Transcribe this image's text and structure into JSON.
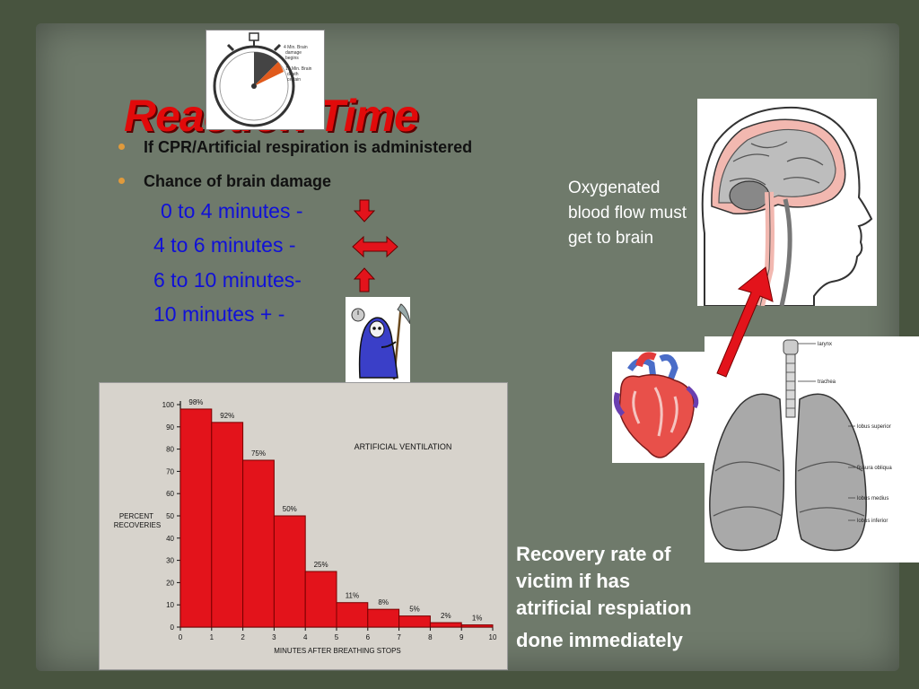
{
  "slide": {
    "title": "Reaction Time",
    "bullets": [
      "If CPR/Artificial respiration is administered",
      "Chance of brain damage"
    ],
    "ranges": [
      {
        "label": "0 to 4 minutes -",
        "arrow": "down-arrow-icon"
      },
      {
        "label": "4 to 6 minutes -",
        "arrow": "left-right-arrow-icon"
      },
      {
        "label": "6 to 10 minutes-",
        "arrow": "up-arrow-icon"
      },
      {
        "label": "10 minutes +  -",
        "arrow": "grim-reaper-icon"
      }
    ],
    "note": "Oxygenated blood flow must get to brain",
    "recovery_lines": [
      "Recovery rate of",
      "victim if has",
      "atrificial respiation",
      "done immediately"
    ],
    "accent_color": "#e10a0a",
    "range_color": "#1010d8"
  },
  "stopwatch": {
    "label1": [
      "4 Min. Brain",
      "damage",
      "begins"
    ],
    "label2": [
      "10 Min. Brain",
      "death",
      "certain"
    ]
  },
  "anatomy": {
    "lung_labels": [
      "larynx",
      "trachea",
      "lobus superior",
      "fissura obliqua",
      "lobus medius",
      "lobus inferior"
    ]
  },
  "chart_data": {
    "type": "bar",
    "title": "ARTIFICIAL VENTILATION",
    "xlabel": "MINUTES AFTER BREATHING STOPS",
    "ylabel": "PERCENT RECOVERIES",
    "x_ticks": [
      0,
      1,
      2,
      3,
      4,
      5,
      6,
      7,
      8,
      9,
      10
    ],
    "y_ticks": [
      0,
      10,
      20,
      30,
      40,
      50,
      60,
      70,
      80,
      90,
      100
    ],
    "xlim": [
      0,
      10
    ],
    "ylim": [
      0,
      100
    ],
    "bars": [
      {
        "x0": 0,
        "x1": 1,
        "value": 98,
        "label": "98%"
      },
      {
        "x0": 1,
        "x1": 2,
        "value": 92,
        "label": "92%"
      },
      {
        "x0": 2,
        "x1": 3,
        "value": 75,
        "label": "75%"
      },
      {
        "x0": 3,
        "x1": 4,
        "value": 50,
        "label": "50%"
      },
      {
        "x0": 4,
        "x1": 5,
        "value": 25,
        "label": "25%"
      },
      {
        "x0": 5,
        "x1": 6,
        "value": 11,
        "label": "11%"
      },
      {
        "x0": 6,
        "x1": 7,
        "value": 8,
        "label": "8%"
      },
      {
        "x0": 7,
        "x1": 8,
        "value": 5,
        "label": "5%"
      },
      {
        "x0": 8,
        "x1": 9,
        "value": 2,
        "label": "2%"
      },
      {
        "x0": 9,
        "x1": 10,
        "value": 1,
        "label": "1%"
      }
    ],
    "bar_color": "#e3131b",
    "grid": false
  }
}
